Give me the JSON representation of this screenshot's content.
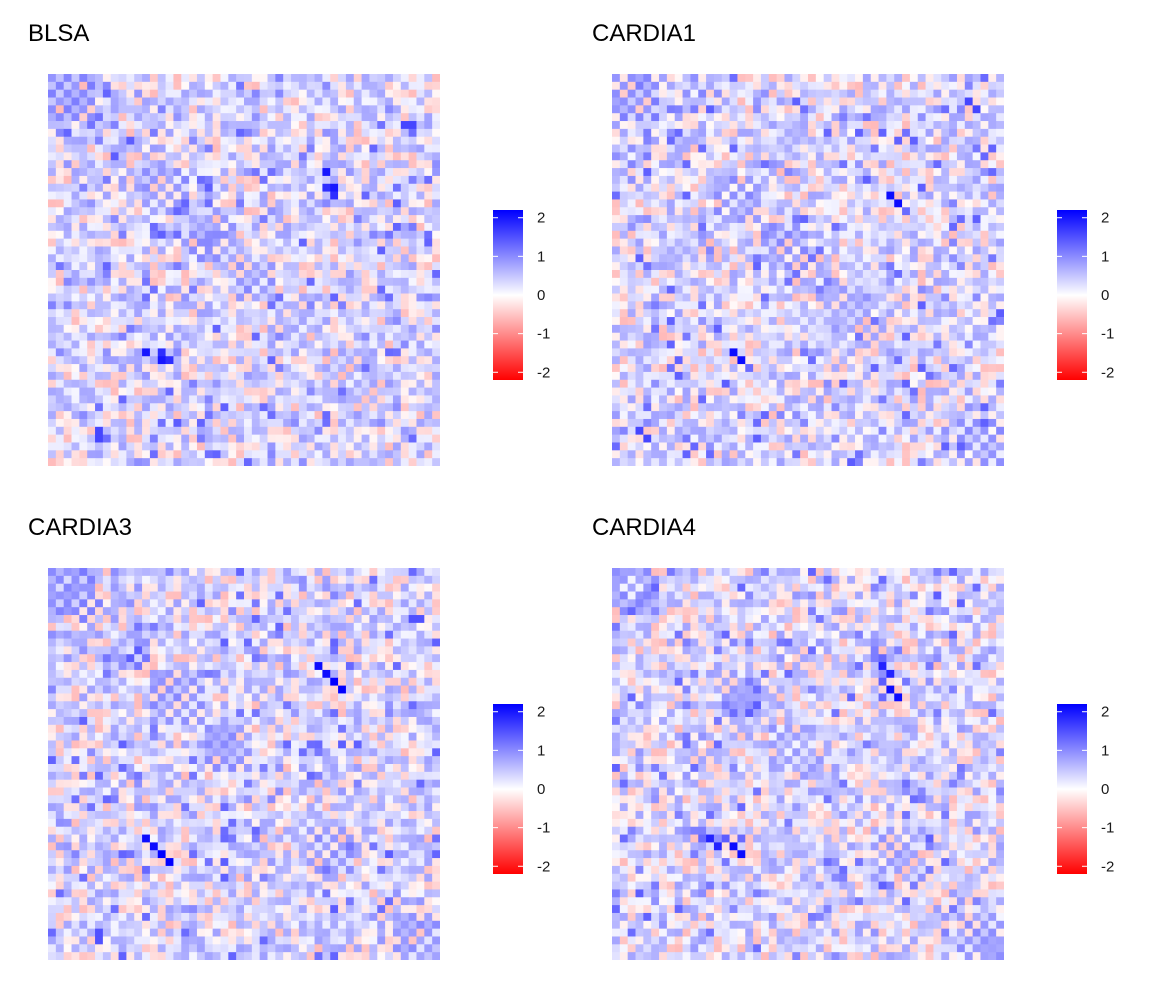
{
  "colors": {
    "negative": "#ff0000",
    "neutral": "#ffffff",
    "positive": "#0000ff"
  },
  "chart_data": [
    {
      "type": "heatmap",
      "title": "BLSA",
      "n": 50,
      "seed": 11,
      "color_limits": [
        -2.2,
        2.2
      ],
      "colorbar_ticks": [
        "2",
        "1",
        "0",
        "-1",
        "-2"
      ],
      "colorbar_tick_values": [
        2,
        1,
        0,
        -1,
        -2
      ],
      "legend_position": "right",
      "strong_cells": [
        [
          35,
          12,
          2.0
        ],
        [
          36,
          14,
          2.0
        ],
        [
          14,
          35,
          1.8
        ],
        [
          15,
          36,
          1.8
        ],
        [
          6,
          45,
          1.6
        ],
        [
          6,
          46,
          1.6
        ]
      ],
      "clusters": [
        [
          0,
          6,
          1.0
        ],
        [
          12,
          18,
          0.9
        ],
        [
          18,
          24,
          0.9
        ],
        [
          24,
          29,
          0.9
        ],
        [
          35,
          42,
          0.7
        ]
      ]
    },
    {
      "type": "heatmap",
      "title": "CARDIA1",
      "n": 50,
      "seed": 23,
      "color_limits": [
        -2.2,
        2.2
      ],
      "colorbar_ticks": [
        "2",
        "1",
        "0",
        "-1",
        "-2"
      ],
      "colorbar_tick_values": [
        2,
        1,
        0,
        -1,
        -2
      ],
      "legend_position": "right",
      "strong_cells": [
        [
          15,
          35,
          2.1
        ],
        [
          16,
          36,
          2.1
        ],
        [
          45,
          3,
          1.6
        ],
        [
          46,
          4,
          1.6
        ]
      ],
      "clusters": [
        [
          0,
          6,
          1.0
        ],
        [
          13,
          19,
          0.9
        ],
        [
          19,
          25,
          0.9
        ],
        [
          27,
          33,
          0.8
        ],
        [
          44,
          50,
          0.9
        ]
      ]
    },
    {
      "type": "heatmap",
      "title": "CARDIA3",
      "n": 50,
      "seed": 37,
      "color_limits": [
        -2.2,
        2.2
      ],
      "colorbar_ticks": [
        "2",
        "1",
        "0",
        "-1",
        "-2"
      ],
      "colorbar_tick_values": [
        2,
        1,
        0,
        -1,
        -2
      ],
      "legend_position": "right",
      "strong_cells": [
        [
          14,
          36,
          2.2
        ],
        [
          15,
          37,
          2.2
        ],
        [
          34,
          12,
          2.1
        ],
        [
          35,
          13,
          2.1
        ],
        [
          6,
          46,
          1.5
        ],
        [
          6,
          47,
          1.5
        ]
      ],
      "clusters": [
        [
          0,
          6,
          1.0
        ],
        [
          13,
          20,
          0.9
        ],
        [
          20,
          26,
          0.9
        ],
        [
          33,
          39,
          0.9
        ],
        [
          44,
          50,
          0.9
        ]
      ]
    },
    {
      "type": "heatmap",
      "title": "CARDIA4",
      "n": 50,
      "seed": 53,
      "color_limits": [
        -2.2,
        2.2
      ],
      "colorbar_ticks": [
        "2",
        "1",
        "0",
        "-1",
        "-2"
      ],
      "colorbar_tick_values": [
        2,
        1,
        0,
        -1,
        -2
      ],
      "legend_position": "right",
      "strong_cells": [
        [
          15,
          35,
          2.1
        ],
        [
          16,
          36,
          2.1
        ],
        [
          34,
          12,
          1.9
        ],
        [
          35,
          13,
          1.9
        ]
      ],
      "clusters": [
        [
          0,
          6,
          0.9
        ],
        [
          13,
          19,
          0.8
        ],
        [
          20,
          26,
          0.8
        ],
        [
          33,
          39,
          0.8
        ],
        [
          44,
          50,
          0.9
        ]
      ]
    }
  ]
}
